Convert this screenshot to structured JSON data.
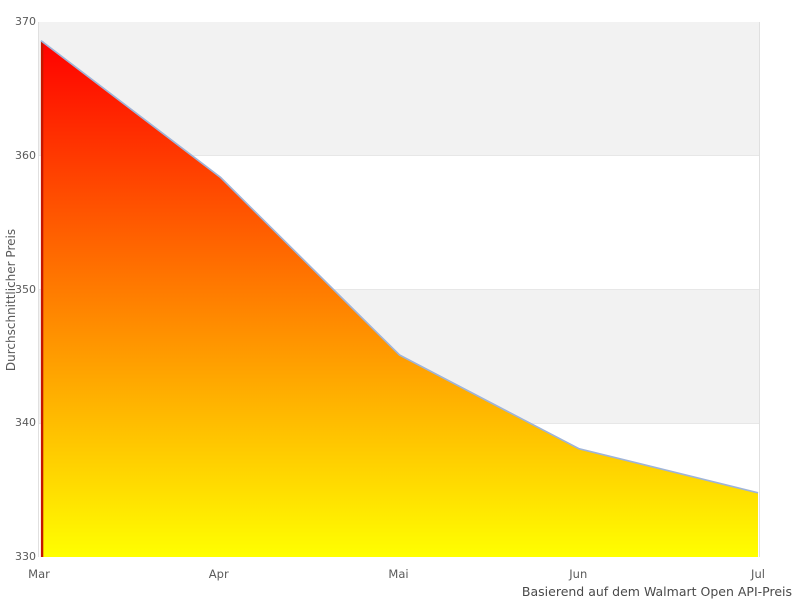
{
  "chart_data": {
    "type": "area",
    "x": [
      "Mar",
      "Apr",
      "Mai",
      "Jun",
      "Jul"
    ],
    "values": [
      368.6,
      358.4,
      345.1,
      338.1,
      334.8
    ],
    "series_name": "Durchschnittlicher Preis",
    "title": "",
    "xlabel": "",
    "ylabel": "Durchschnittlicher Preis",
    "caption": "Basierend auf dem Walmart Open API-Preis",
    "ylim": [
      330,
      370
    ],
    "yticks": [
      330,
      340,
      350,
      360,
      370
    ],
    "grid": "horizontal zebra bands, gray/white alternating from top",
    "legend_position": "none",
    "colors": {
      "area_gradient_top": "#ff0000",
      "area_gradient_bottom": "#ffff00",
      "line": "#9fb4d8",
      "left_edge": "#c51700",
      "band_gray": "#f2f2f2",
      "band_white": "#ffffff",
      "gridline": "#e7e7e7",
      "plot_border": "#e0e0e0",
      "axis_text": "#5a5a5a",
      "caption_text": "#4a4a4a"
    }
  }
}
